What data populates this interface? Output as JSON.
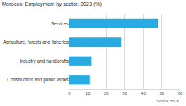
{
  "chart_data": {
    "type": "bar",
    "orientation": "horizontal",
    "title": "Morocco: Employment by sector, 2023 (%)",
    "categories": [
      "Services",
      "Agriculture, forests and fisheries",
      "Industry and handicrafts",
      "Construction and public works"
    ],
    "values": [
      48,
      28,
      12,
      11
    ],
    "color": "#29abe2",
    "xlim": [
      0,
      60
    ],
    "xticks": [
      0,
      10,
      20,
      30,
      40,
      50,
      60
    ],
    "grid": true,
    "annotations": [
      "Source: HCP"
    ]
  }
}
